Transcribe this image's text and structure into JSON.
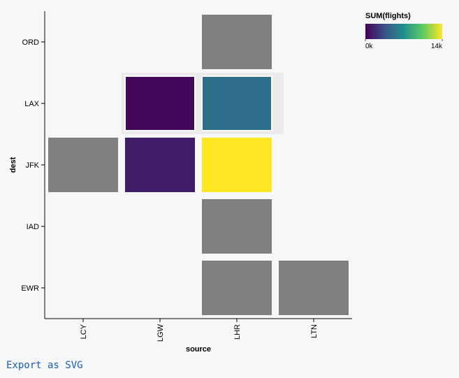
{
  "chart_data": {
    "type": "heatmap",
    "x_field": "source",
    "y_field": "dest",
    "xlabel": "source",
    "ylabel": "dest",
    "x_categories": [
      "LCY",
      "LGW",
      "LHR",
      "LTN"
    ],
    "y_categories": [
      "ORD",
      "LAX",
      "JFK",
      "IAD",
      "EWR"
    ],
    "cells": [
      {
        "x": "LHR",
        "y": "ORD",
        "value": null
      },
      {
        "x": "LGW",
        "y": "LAX",
        "value": 300
      },
      {
        "x": "LHR",
        "y": "LAX",
        "value": 5000
      },
      {
        "x": "LCY",
        "y": "JFK",
        "value": null
      },
      {
        "x": "LGW",
        "y": "JFK",
        "value": 1200
      },
      {
        "x": "LHR",
        "y": "JFK",
        "value": 14000
      },
      {
        "x": "LHR",
        "y": "IAD",
        "value": null
      },
      {
        "x": "LHR",
        "y": "EWR",
        "value": null
      },
      {
        "x": "LTN",
        "y": "EWR",
        "value": null
      }
    ],
    "null_color": "#808080",
    "highlighted_row": "LAX",
    "color_scale": {
      "scheme": "viridis",
      "domain": [
        0,
        14000
      ],
      "colors": [
        "#440154",
        "#3b528b",
        "#21918c",
        "#5ec962",
        "#fde725"
      ]
    },
    "legend": {
      "title": "SUM(flights)",
      "min_label": "0k",
      "max_label": "14k",
      "placement": "top-right"
    }
  },
  "export": {
    "label": "Export as SVG"
  }
}
